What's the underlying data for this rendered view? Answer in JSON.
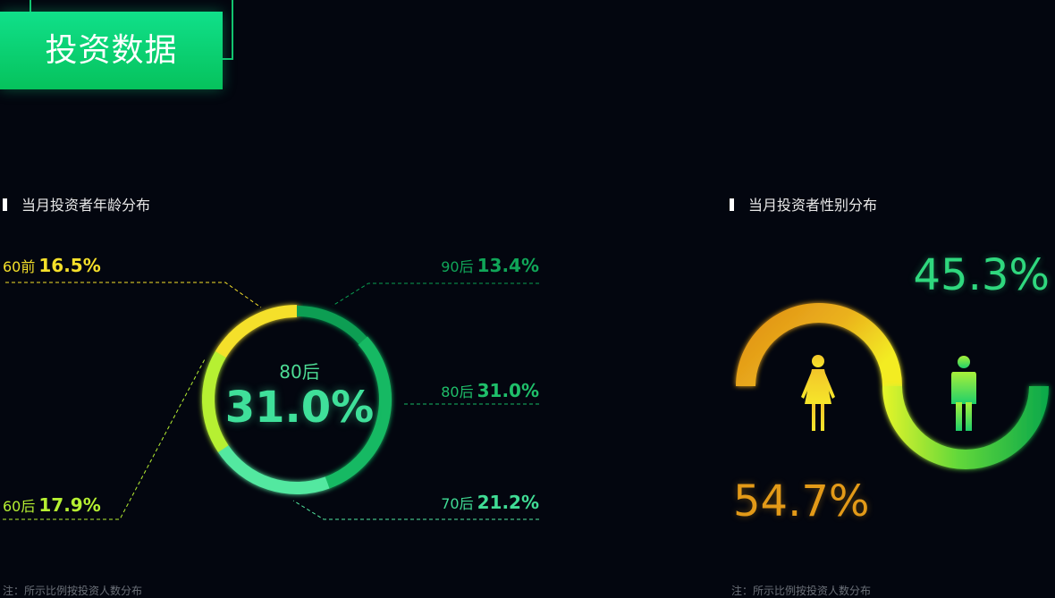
{
  "header": {
    "title": "投资数据"
  },
  "age_section": {
    "title": "当月投资者年龄分布",
    "note": "注：所示比例按投资人数分布"
  },
  "gender_section": {
    "title": "当月投资者性别分布",
    "note": "注：所示比例按投资人数分布"
  },
  "colors": {
    "accent": "#10e08a",
    "pre60": "#f5e02a",
    "g60": "#b6f032",
    "g70": "#52e8a0",
    "g80": "#16b964",
    "g90": "#0a9e52",
    "female": "#e39a18",
    "male": "#1fd37a"
  },
  "chart_data": [
    {
      "type": "pie",
      "variant": "donut",
      "title": "当月投资者年龄分布",
      "categories": [
        "60前",
        "90后",
        "80后",
        "70后",
        "60后"
      ],
      "values": [
        16.5,
        13.4,
        31.0,
        21.2,
        17.9
      ],
      "value_labels": [
        "16.5%",
        "13.4%",
        "31.0%",
        "21.2%",
        "17.9%"
      ],
      "center": {
        "category": "80后",
        "value": "31.0%"
      }
    },
    {
      "type": "pie",
      "variant": "gender-arcs",
      "title": "当月投资者性别分布",
      "categories": [
        "female",
        "male"
      ],
      "values": [
        54.7,
        45.3
      ],
      "value_labels": [
        "54.7%",
        "45.3%"
      ]
    }
  ]
}
